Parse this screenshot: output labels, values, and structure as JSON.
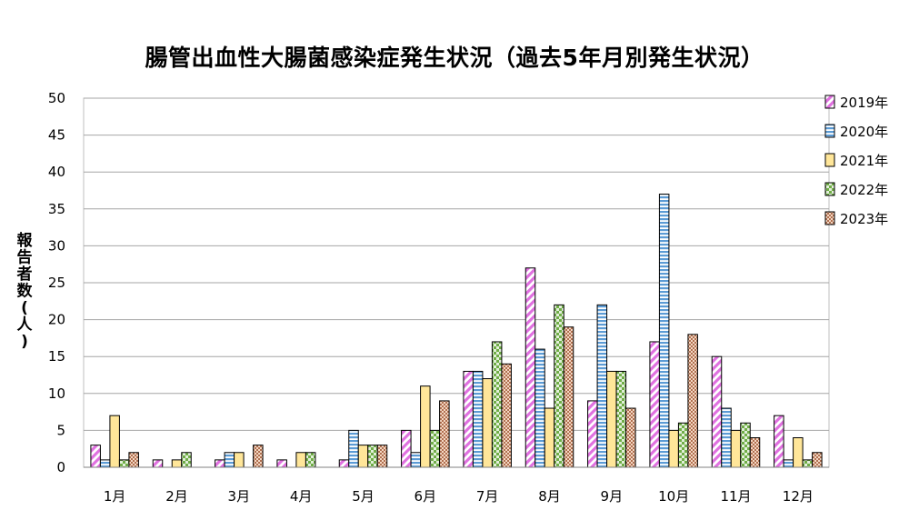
{
  "chart_data": {
    "type": "bar",
    "title": "腸管出血性大腸菌感染症発生状況（過去5年月別発生状況）",
    "xlabel": "",
    "ylabel": "報告者数(人)",
    "ylim": [
      0,
      50
    ],
    "yticks": [
      0,
      5,
      10,
      15,
      20,
      25,
      30,
      35,
      40,
      45,
      50
    ],
    "grid": true,
    "legend_position": "right",
    "categories": [
      "1月",
      "2月",
      "3月",
      "4月",
      "5月",
      "6月",
      "7月",
      "8月",
      "9月",
      "10月",
      "11月",
      "12月"
    ],
    "series": [
      {
        "name": "2019年",
        "color": "#e8a6ec",
        "pattern": "diagonal-stripes",
        "values": [
          3,
          1,
          1,
          1,
          1,
          5,
          13,
          27,
          9,
          17,
          15,
          7
        ]
      },
      {
        "name": "2020年",
        "color": "#6fa8dc",
        "pattern": "horizontal-stripes",
        "values": [
          1,
          0,
          2,
          0,
          5,
          2,
          13,
          16,
          22,
          37,
          8,
          1
        ]
      },
      {
        "name": "2021年",
        "color": "#ffe699",
        "pattern": "solid",
        "values": [
          7,
          1,
          2,
          2,
          3,
          11,
          12,
          8,
          13,
          5,
          5,
          4
        ]
      },
      {
        "name": "2022年",
        "color": "#a9c49a",
        "pattern": "checkerboard",
        "values": [
          1,
          2,
          0,
          2,
          3,
          5,
          17,
          22,
          13,
          6,
          6,
          1
        ]
      },
      {
        "name": "2023年",
        "color": "#d9a98c",
        "pattern": "small-dots",
        "values": [
          2,
          0,
          3,
          0,
          3,
          9,
          14,
          19,
          8,
          18,
          4,
          2
        ]
      }
    ]
  }
}
